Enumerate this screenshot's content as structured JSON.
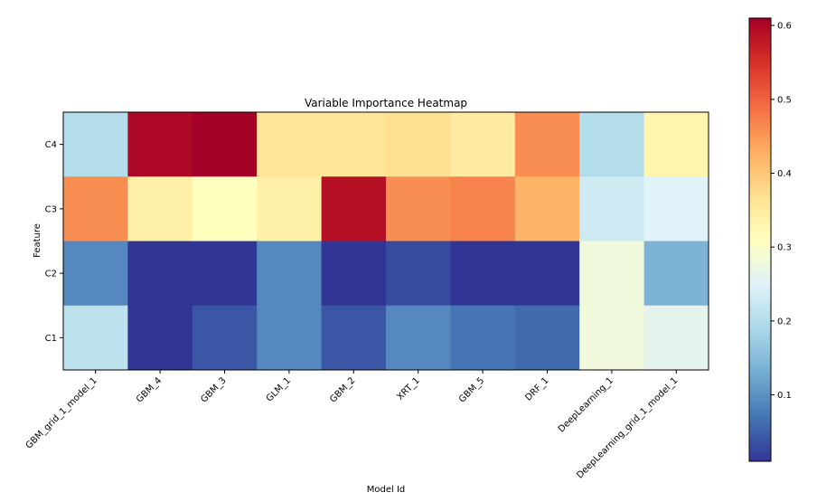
{
  "chart_data": {
    "type": "heatmap",
    "title": "Variable Importance Heatmap",
    "xlabel": "Model Id",
    "ylabel": "Feature",
    "x_categories": [
      "GBM_grid_1_model_1",
      "GBM_4",
      "GBM_3",
      "GLM_1",
      "GBM_2",
      "XRT_1",
      "GBM_5",
      "DRF_1",
      "DeepLearning_1",
      "DeepLearning_grid_1_model_1"
    ],
    "y_categories": [
      "C4",
      "C3",
      "C2",
      "C1"
    ],
    "values": [
      [
        0.2,
        0.6,
        0.61,
        0.36,
        0.36,
        0.37,
        0.35,
        0.46,
        0.2,
        0.33
      ],
      [
        0.46,
        0.34,
        0.31,
        0.34,
        0.59,
        0.46,
        0.47,
        0.42,
        0.23,
        0.25
      ],
      [
        0.09,
        0.01,
        0.01,
        0.09,
        0.01,
        0.03,
        0.01,
        0.01,
        0.28,
        0.14
      ],
      [
        0.21,
        0.01,
        0.04,
        0.09,
        0.04,
        0.09,
        0.07,
        0.06,
        0.28,
        0.26
      ]
    ],
    "colormap": "RdYlBu_r",
    "color_range": [
      0.01,
      0.61
    ],
    "colorbar_ticks": [
      "0.1",
      "0.2",
      "0.3",
      "0.4",
      "0.5",
      "0.6"
    ],
    "colorbar_tick_values": [
      0.1,
      0.2,
      0.3,
      0.4,
      0.5,
      0.6
    ],
    "grid": false,
    "legend": "colorbar-right",
    "colors": [
      "#313695",
      "#4575b4",
      "#74add1",
      "#abd9e9",
      "#e0f3f8",
      "#ffffbf",
      "#fee090",
      "#fdae61",
      "#f46d43",
      "#d73027",
      "#a50026"
    ]
  }
}
